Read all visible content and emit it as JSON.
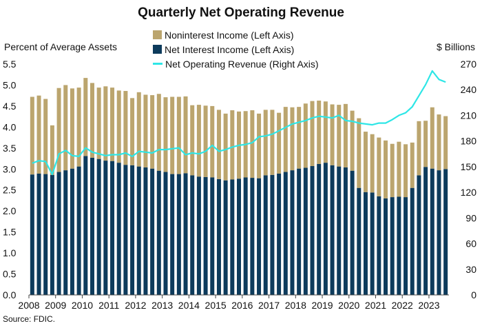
{
  "chart_data": {
    "type": "bar",
    "title": "Quarterly Net Operating Revenue",
    "ylabel_left": "Percent of Average Assets",
    "ylabel_right": "$ Billions",
    "source": "Source: FDIC.",
    "ylim_left": [
      0,
      5.5
    ],
    "ylim_right": [
      0,
      270
    ],
    "yticks_left": [
      "0.0",
      "0.5",
      "1.0",
      "1.5",
      "2.0",
      "2.5",
      "3.0",
      "3.5",
      "4.0",
      "4.5",
      "5.0",
      "5.5"
    ],
    "yticks_right": [
      "0",
      "30",
      "60",
      "90",
      "120",
      "150",
      "180",
      "210",
      "240",
      "270"
    ],
    "year_labels": [
      "2008",
      "2009",
      "2010",
      "2011",
      "2012",
      "2013",
      "2014",
      "2015",
      "2016",
      "2017",
      "2018",
      "2019",
      "2020",
      "2021",
      "2022",
      "2023"
    ],
    "legend": {
      "noninterest": "Noninterest Income (Left Axis)",
      "net_interest": "Net Interest Income (Left Axis)",
      "revenue": "Net Operating Revenue (Right Axis)"
    },
    "colors": {
      "noninterest": "#bba56e",
      "net_interest": "#0d3b5c",
      "revenue": "#2ee6e6"
    },
    "quarters": [
      "2008Q1",
      "2008Q2",
      "2008Q3",
      "2008Q4",
      "2009Q1",
      "2009Q2",
      "2009Q3",
      "2009Q4",
      "2010Q1",
      "2010Q2",
      "2010Q3",
      "2010Q4",
      "2011Q1",
      "2011Q2",
      "2011Q3",
      "2011Q4",
      "2012Q1",
      "2012Q2",
      "2012Q3",
      "2012Q4",
      "2013Q1",
      "2013Q2",
      "2013Q3",
      "2013Q4",
      "2014Q1",
      "2014Q2",
      "2014Q3",
      "2014Q4",
      "2015Q1",
      "2015Q2",
      "2015Q3",
      "2015Q4",
      "2016Q1",
      "2016Q2",
      "2016Q3",
      "2016Q4",
      "2017Q1",
      "2017Q2",
      "2017Q3",
      "2017Q4",
      "2018Q1",
      "2018Q2",
      "2018Q3",
      "2018Q4",
      "2019Q1",
      "2019Q2",
      "2019Q3",
      "2019Q4",
      "2020Q1",
      "2020Q2",
      "2020Q3",
      "2020Q4",
      "2021Q1",
      "2021Q2",
      "2021Q3",
      "2021Q4",
      "2022Q1",
      "2022Q2",
      "2022Q3",
      "2022Q4",
      "2023Q1",
      "2023Q2",
      "2023Q3"
    ],
    "series": [
      {
        "name": "Net Interest Income (Left Axis)",
        "values": [
          2.87,
          2.89,
          2.88,
          2.86,
          2.93,
          2.97,
          3.01,
          3.06,
          3.31,
          3.27,
          3.24,
          3.2,
          3.19,
          3.15,
          3.1,
          3.09,
          3.06,
          3.04,
          3.01,
          2.96,
          2.93,
          2.88,
          2.88,
          2.9,
          2.85,
          2.82,
          2.81,
          2.8,
          2.76,
          2.73,
          2.75,
          2.77,
          2.8,
          2.79,
          2.78,
          2.85,
          2.86,
          2.89,
          2.93,
          2.97,
          3.01,
          3.03,
          3.07,
          3.12,
          3.15,
          3.09,
          3.06,
          3.04,
          2.96,
          2.55,
          2.45,
          2.44,
          2.35,
          2.3,
          2.33,
          2.34,
          2.33,
          2.55,
          2.85,
          3.05,
          3.01,
          2.97,
          3.0
        ]
      },
      {
        "name": "Noninterest Income (Left Axis)",
        "values": [
          1.85,
          1.86,
          1.79,
          1.18,
          2.0,
          2.03,
          1.91,
          1.88,
          1.86,
          1.78,
          1.7,
          1.77,
          1.75,
          1.72,
          1.76,
          1.6,
          1.77,
          1.73,
          1.75,
          1.83,
          1.78,
          1.84,
          1.84,
          1.83,
          1.67,
          1.71,
          1.7,
          1.7,
          1.65,
          1.59,
          1.65,
          1.6,
          1.58,
          1.61,
          1.54,
          1.56,
          1.55,
          1.45,
          1.55,
          1.5,
          1.47,
          1.53,
          1.55,
          1.51,
          1.46,
          1.45,
          1.47,
          1.51,
          1.43,
          1.66,
          1.44,
          1.39,
          1.4,
          1.38,
          1.27,
          1.31,
          1.26,
          1.08,
          1.29,
          1.1,
          1.46,
          1.33,
          1.26
        ]
      },
      {
        "name": "Net Operating Revenue (Right Axis)",
        "values": [
          154,
          157,
          156,
          141,
          165,
          169,
          163,
          162,
          172,
          167,
          165,
          163,
          164,
          164,
          166,
          162,
          168,
          167,
          166,
          170,
          170,
          171,
          172,
          164,
          166,
          165,
          168,
          175,
          168,
          170,
          173,
          175,
          176,
          178,
          185,
          186,
          188,
          192,
          196,
          200,
          202,
          204,
          207,
          209,
          208,
          207,
          210,
          204,
          203,
          201,
          200,
          199,
          201,
          201,
          205,
          210,
          213,
          220,
          233,
          246,
          262,
          252,
          249
        ]
      }
    ]
  }
}
